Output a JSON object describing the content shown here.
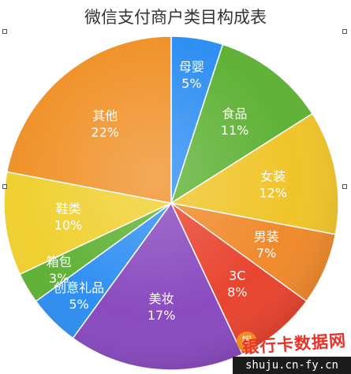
{
  "chart_data": {
    "type": "pie",
    "title": "微信支付商户类目构成表",
    "slices": [
      {
        "label": "母婴",
        "value": 5,
        "display": "5%",
        "color": "#2f8ff2"
      },
      {
        "label": "食品",
        "value": 11,
        "display": "11%",
        "color": "#5fb236"
      },
      {
        "label": "女装",
        "value": 12,
        "display": "12%",
        "color": "#f0c52a"
      },
      {
        "label": "男装",
        "value": 7,
        "display": "7%",
        "color": "#f08a2c"
      },
      {
        "label": "3C",
        "value": 8,
        "display": "8%",
        "color": "#e84530"
      },
      {
        "label": "",
        "value": 0,
        "display": "",
        "color": "#c0306a"
      },
      {
        "label": "美妆",
        "value": 17,
        "display": "17%",
        "color": "#8a4bbf"
      },
      {
        "label": "创意礼品",
        "value": 5,
        "display": "5%",
        "color": "#2f8ff2"
      },
      {
        "label": "箱包",
        "value": 3,
        "display": "3%",
        "color": "#5fb236"
      },
      {
        "label": "鞋类",
        "value": 10,
        "display": "10%",
        "color": "#f0d030"
      },
      {
        "label": "其他",
        "value": 22,
        "display": "22%",
        "color": "#f0922a"
      }
    ]
  },
  "watermark": {
    "site_cn": "银行卡数据网",
    "domain": "shuju.cn-fy.cn",
    "logo_char": "银"
  }
}
